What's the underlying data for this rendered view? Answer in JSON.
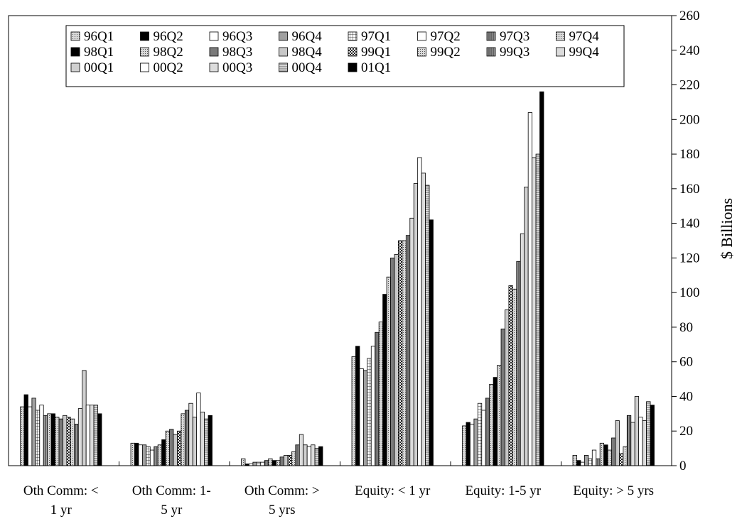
{
  "chart_data": {
    "type": "bar",
    "title": "",
    "xlabel": "",
    "ylabel": "$ Billions",
    "ylim": [
      0,
      260
    ],
    "yticks": [
      0,
      20,
      40,
      60,
      80,
      100,
      120,
      140,
      160,
      180,
      200,
      220,
      240,
      260
    ],
    "y_axis_side": "right",
    "grid": false,
    "legend_position": "top-left-inside",
    "categories": [
      [
        "Oth Comm: <",
        "1 yr"
      ],
      [
        "Oth Comm: 1-",
        "5 yr"
      ],
      [
        "Oth Comm: >",
        "5 yrs"
      ],
      [
        "Equity: < 1 yr"
      ],
      [
        "Equity: 1-5 yr"
      ],
      [
        "Equity: > 5 yrs"
      ]
    ],
    "series": [
      {
        "name": "96Q1",
        "fill": "#bdbdbd",
        "pattern": "dots",
        "values": [
          34,
          13,
          4,
          63,
          23,
          6
        ]
      },
      {
        "name": "96Q2",
        "fill": "#000000",
        "pattern": "solid",
        "values": [
          41,
          13,
          1,
          69,
          25,
          3
        ]
      },
      {
        "name": "96Q3",
        "fill": "#ffffff",
        "pattern": "solid",
        "values": [
          34,
          12,
          1,
          56,
          24,
          2
        ]
      },
      {
        "name": "96Q4",
        "fill": "#a0a0a0",
        "pattern": "solid",
        "values": [
          39,
          12,
          2,
          55,
          27,
          6
        ]
      },
      {
        "name": "97Q1",
        "fill": "#ffffff",
        "pattern": "grid",
        "values": [
          32,
          11,
          2,
          62,
          36,
          4
        ]
      },
      {
        "name": "97Q2",
        "fill": "#ffffff",
        "pattern": "solid",
        "values": [
          35,
          9,
          2,
          69,
          32,
          9
        ]
      },
      {
        "name": "97Q3",
        "fill": "#8c8c8c",
        "pattern": "vlines",
        "values": [
          29,
          11,
          3,
          77,
          39,
          4
        ]
      },
      {
        "name": "97Q4",
        "fill": "#c8c8c8",
        "pattern": "dots",
        "values": [
          30,
          12,
          4,
          83,
          47,
          13
        ]
      },
      {
        "name": "98Q1",
        "fill": "#000000",
        "pattern": "solid",
        "values": [
          30,
          15,
          3,
          99,
          51,
          12
        ]
      },
      {
        "name": "98Q2",
        "fill": "#c0c0c0",
        "pattern": "dots",
        "values": [
          28,
          20,
          3,
          109,
          58,
          9
        ]
      },
      {
        "name": "98Q3",
        "fill": "#7a7a7a",
        "pattern": "solid",
        "values": [
          27,
          21,
          5,
          120,
          79,
          16
        ]
      },
      {
        "name": "98Q4",
        "fill": "#c8c8c8",
        "pattern": "solid",
        "values": [
          29,
          18,
          6,
          122,
          90,
          26
        ]
      },
      {
        "name": "99Q1",
        "fill": "#9a9a9a",
        "pattern": "checker",
        "values": [
          28,
          20,
          6,
          130,
          104,
          7
        ]
      },
      {
        "name": "99Q2",
        "fill": "#b0b0b0",
        "pattern": "dots",
        "values": [
          27,
          30,
          8,
          130,
          102,
          11
        ]
      },
      {
        "name": "99Q3",
        "fill": "#707070",
        "pattern": "vlines",
        "values": [
          24,
          32,
          12,
          133,
          118,
          29
        ]
      },
      {
        "name": "99Q4",
        "fill": "#dcdcdc",
        "pattern": "solid",
        "values": [
          33,
          36,
          18,
          143,
          134,
          25
        ]
      },
      {
        "name": "00Q1",
        "fill": "#d0d0d0",
        "pattern": "solid",
        "values": [
          55,
          28,
          12,
          163,
          161,
          40
        ]
      },
      {
        "name": "00Q2",
        "fill": "#ffffff",
        "pattern": "solid",
        "values": [
          35,
          42,
          11,
          178,
          204,
          28
        ]
      },
      {
        "name": "00Q3",
        "fill": "#dcdcdc",
        "pattern": "solid",
        "values": [
          35,
          31,
          12,
          169,
          178,
          26
        ]
      },
      {
        "name": "00Q4",
        "fill": "#c8c8c8",
        "pattern": "hlines",
        "values": [
          35,
          27,
          10,
          162,
          180,
          37
        ]
      },
      {
        "name": "01Q1",
        "fill": "#000000",
        "pattern": "solid",
        "values": [
          30,
          29,
          11,
          142,
          216,
          35
        ]
      }
    ]
  }
}
